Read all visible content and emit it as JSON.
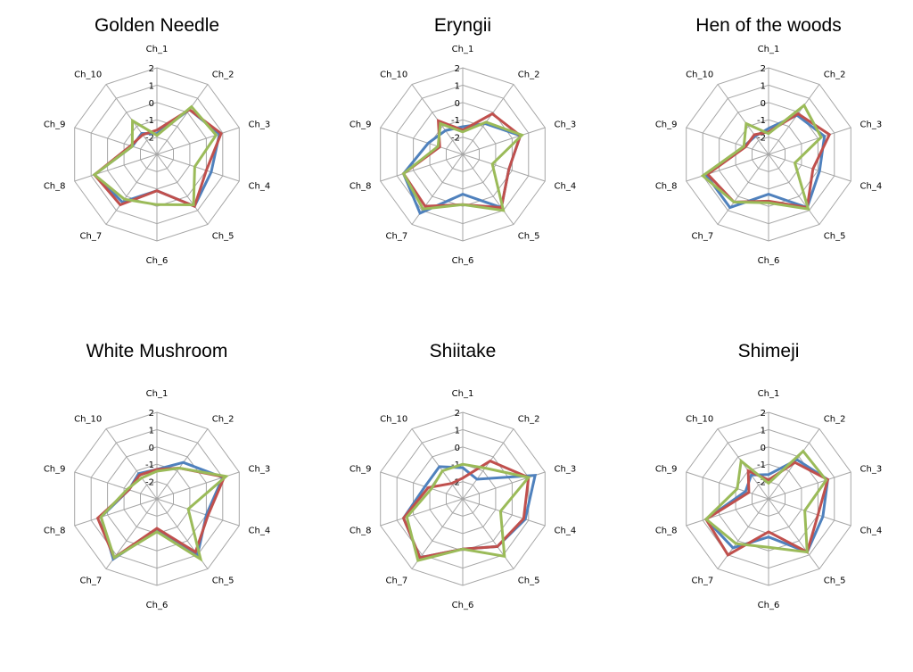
{
  "chart_data": [
    {
      "type": "radar",
      "title": "Golden Needle",
      "categories": [
        "Ch_1",
        "Ch_2",
        "Ch_3",
        "Ch_4",
        "Ch_5",
        "Ch_6",
        "Ch_7",
        "Ch_8",
        "Ch_9",
        "Ch_10"
      ],
      "ticks": [
        "2",
        "1",
        "0",
        "-1",
        "-2"
      ],
      "rlim": [
        -3,
        2
      ],
      "series": [
        {
          "color": "#4f81bd",
          "values": [
            -1.8,
            0.2,
            0.8,
            0.3,
            0.7,
            -0.9,
            0.4,
            0.8,
            -1.5,
            -1.5
          ]
        },
        {
          "color": "#c0504d",
          "values": [
            -1.6,
            0.2,
            0.9,
            0.0,
            0.7,
            -0.9,
            0.6,
            0.8,
            -1.4,
            -1.6
          ]
        },
        {
          "color": "#9bbb59",
          "values": [
            -1.9,
            0.4,
            0.6,
            -0.7,
            0.6,
            -0.1,
            0.2,
            0.8,
            -1.5,
            -0.6
          ]
        }
      ]
    },
    {
      "type": "radar",
      "title": "Eryngii",
      "categories": [
        "Ch_1",
        "Ch_2",
        "Ch_3",
        "Ch_4",
        "Ch_5",
        "Ch_6",
        "Ch_7",
        "Ch_8",
        "Ch_9",
        "Ch_10"
      ],
      "ticks": [
        "2",
        "1",
        "0",
        "-1",
        "-2"
      ],
      "rlim": [
        -3,
        2
      ],
      "series": [
        {
          "color": "#4f81bd",
          "values": [
            -1.4,
            -0.8,
            0.5,
            -0.2,
            0.8,
            -0.7,
            1.2,
            0.6,
            -0.9,
            -1.3
          ]
        },
        {
          "color": "#c0504d",
          "values": [
            -1.6,
            -0.1,
            0.5,
            -0.2,
            0.8,
            -0.1,
            0.7,
            0.6,
            -1.6,
            -0.6
          ]
        },
        {
          "color": "#9bbb59",
          "values": [
            -1.7,
            -0.7,
            0.6,
            -1.2,
            1.0,
            -0.1,
            0.9,
            0.6,
            -1.5,
            -0.8
          ]
        }
      ]
    },
    {
      "type": "radar",
      "title": "Hen of the woods",
      "categories": [
        "Ch_1",
        "Ch_2",
        "Ch_3",
        "Ch_4",
        "Ch_5",
        "Ch_6",
        "Ch_7",
        "Ch_8",
        "Ch_9",
        "Ch_10"
      ],
      "ticks": [
        "2",
        "1",
        "0",
        "-1",
        "-2"
      ],
      "rlim": [
        -3,
        2
      ],
      "series": [
        {
          "color": "#4f81bd",
          "values": [
            -1.5,
            -0.2,
            0.4,
            0.1,
            0.8,
            -0.7,
            0.8,
            0.8,
            -1.5,
            -1.7
          ]
        },
        {
          "color": "#c0504d",
          "values": [
            -1.7,
            -0.1,
            0.7,
            -0.3,
            0.8,
            -0.3,
            0.4,
            0.7,
            -1.6,
            -1.6
          ]
        },
        {
          "color": "#9bbb59",
          "values": [
            -1.8,
            0.5,
            0.2,
            -1.4,
            0.9,
            -0.2,
            0.4,
            1.0,
            -1.5,
            -0.8
          ]
        }
      ]
    },
    {
      "type": "radar",
      "title": "White Mushroom",
      "categories": [
        "Ch_1",
        "Ch_2",
        "Ch_3",
        "Ch_4",
        "Ch_5",
        "Ch_6",
        "Ch_7",
        "Ch_8",
        "Ch_9",
        "Ch_10"
      ],
      "ticks": [
        "2",
        "1",
        "0",
        "-1",
        "-2"
      ],
      "rlim": [
        -3,
        2
      ],
      "series": [
        {
          "color": "#4f81bd",
          "values": [
            -1.3,
            -0.4,
            1.0,
            0.0,
            1.0,
            -1.2,
            1.3,
            0.4,
            -1.3,
            -1.2
          ]
        },
        {
          "color": "#c0504d",
          "values": [
            -1.3,
            -0.8,
            1.1,
            0.1,
            0.8,
            -1.3,
            1.2,
            0.6,
            -1.3,
            -1.3
          ]
        },
        {
          "color": "#9bbb59",
          "values": [
            -1.4,
            -0.8,
            1.2,
            -1.1,
            1.3,
            -1.1,
            1.2,
            0.4,
            -1.2,
            -1.5
          ]
        }
      ]
    },
    {
      "type": "radar",
      "title": "Shiitake",
      "categories": [
        "Ch_1",
        "Ch_2",
        "Ch_3",
        "Ch_4",
        "Ch_5",
        "Ch_6",
        "Ch_7",
        "Ch_8",
        "Ch_9",
        "Ch_10"
      ],
      "ticks": [
        "2",
        "1",
        "0",
        "-1",
        "-2"
      ],
      "rlim": [
        -3,
        2
      ],
      "series": [
        {
          "color": "#4f81bd",
          "values": [
            -1.2,
            -1.6,
            1.4,
            0.8,
            0.4,
            -0.1,
            1.2,
            0.6,
            -0.7,
            -0.7
          ]
        },
        {
          "color": "#c0504d",
          "values": [
            -1.8,
            -0.3,
            1.0,
            0.7,
            0.4,
            -0.1,
            1.2,
            0.6,
            -0.9,
            -1.9
          ]
        },
        {
          "color": "#9bbb59",
          "values": [
            -1.0,
            -0.8,
            1.0,
            -0.7,
            1.1,
            -0.1,
            1.4,
            0.4,
            -1.1,
            -1.0
          ]
        }
      ]
    },
    {
      "type": "radar",
      "title": "Shimeji",
      "categories": [
        "Ch_1",
        "Ch_2",
        "Ch_3",
        "Ch_4",
        "Ch_5",
        "Ch_6",
        "Ch_7",
        "Ch_8",
        "Ch_9",
        "Ch_10"
      ],
      "ticks": [
        "2",
        "1",
        "0",
        "-1",
        "-2"
      ],
      "rlim": [
        -3,
        2
      ],
      "series": [
        {
          "color": "#4f81bd",
          "values": [
            -1.6,
            -0.2,
            0.6,
            0.3,
            0.8,
            -0.8,
            0.5,
            0.8,
            -1.6,
            -1.3
          ]
        },
        {
          "color": "#c0504d",
          "values": [
            -1.9,
            -0.4,
            0.6,
            0.0,
            0.8,
            -1.1,
            1.0,
            0.8,
            -1.8,
            -1.0
          ]
        },
        {
          "color": "#9bbb59",
          "values": [
            -2.1,
            0.4,
            0.5,
            -0.8,
            0.8,
            -0.2,
            0.2,
            0.8,
            -1.1,
            -0.3
          ]
        }
      ]
    }
  ]
}
